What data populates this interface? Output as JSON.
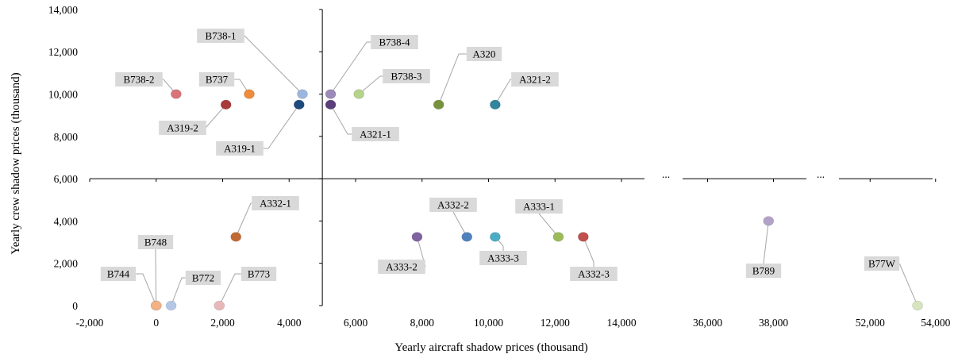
{
  "chart_data": {
    "type": "scatter",
    "xlabel": "Yearly aircraft shadow prices (thousand)",
    "ylabel": "Yearly crew shadow prices (thousand)",
    "x_ticks": [
      "-2,000",
      "0",
      "2,000",
      "4,000",
      "6,000",
      "8,000",
      "10,000",
      "12,000",
      "14,000",
      "36,000",
      "38,000",
      "52,000",
      "54,000"
    ],
    "y_ticks": [
      "0",
      "2,000",
      "4,000",
      "6,000",
      "8,000",
      "10,000",
      "12,000",
      "14,000"
    ],
    "ylim": [
      0,
      14000
    ],
    "x_segments": [
      {
        "range": [
          -2000,
          14000
        ],
        "ticks": [
          -2000,
          0,
          2000,
          4000,
          6000,
          8000,
          10000,
          12000,
          14000
        ]
      },
      {
        "range": [
          35000,
          39000
        ],
        "ticks": [
          36000,
          38000
        ]
      },
      {
        "range": [
          51000,
          55000
        ],
        "ticks": [
          52000,
          54000
        ]
      }
    ],
    "axis_breaks": [
      "...",
      "..."
    ],
    "grid": false,
    "points": [
      {
        "label": "B738-2",
        "x": 600,
        "y": 10000,
        "color": "#d9737a"
      },
      {
        "label": "B737",
        "x": 2800,
        "y": 10000,
        "color": "#ef8c3c"
      },
      {
        "label": "B738-1",
        "x": 4400,
        "y": 10000,
        "color": "#9db6df"
      },
      {
        "label": "A319-2",
        "x": 2100,
        "y": 9500,
        "color": "#a83a3b"
      },
      {
        "label": "A319-1",
        "x": 4300,
        "y": 9500,
        "color": "#1f4a7e"
      },
      {
        "label": "B738-4",
        "x": 5250,
        "y": 10000,
        "color": "#9c8ab8"
      },
      {
        "label": "A321-1",
        "x": 5250,
        "y": 9500,
        "color": "#5b3f7a"
      },
      {
        "label": "B738-3",
        "x": 6100,
        "y": 10000,
        "color": "#b5d38b"
      },
      {
        "label": "A320",
        "x": 8500,
        "y": 9500,
        "color": "#76923c"
      },
      {
        "label": "A321-2",
        "x": 10200,
        "y": 9500,
        "color": "#31859c"
      },
      {
        "label": "A332-1",
        "x": 2400,
        "y": 3250,
        "color": "#c26a34"
      },
      {
        "label": "B744",
        "x": 0,
        "y": 0,
        "color": "#f4b183"
      },
      {
        "label": "B748",
        "x": 0,
        "y": 0,
        "color": "#f4b183"
      },
      {
        "label": "B772",
        "x": 450,
        "y": 0,
        "color": "#b4c7e7"
      },
      {
        "label": "B773",
        "x": 1900,
        "y": 0,
        "color": "#e6b9b8"
      },
      {
        "label": "A333-2",
        "x": 7850,
        "y": 3250,
        "color": "#8064a2"
      },
      {
        "label": "A332-2",
        "x": 9350,
        "y": 3250,
        "color": "#4f81bd"
      },
      {
        "label": "A333-3",
        "x": 10200,
        "y": 3250,
        "color": "#4bacc6"
      },
      {
        "label": "A333-1",
        "x": 12100,
        "y": 3250,
        "color": "#9bbb59"
      },
      {
        "label": "A332-3",
        "x": 12850,
        "y": 3250,
        "color": "#c0504d"
      },
      {
        "label": "B789",
        "x": 37850,
        "y": 4000,
        "color": "#b3a2c7"
      },
      {
        "label": "B77W",
        "x": 53450,
        "y": 0,
        "color": "#d7e4bd"
      }
    ]
  }
}
